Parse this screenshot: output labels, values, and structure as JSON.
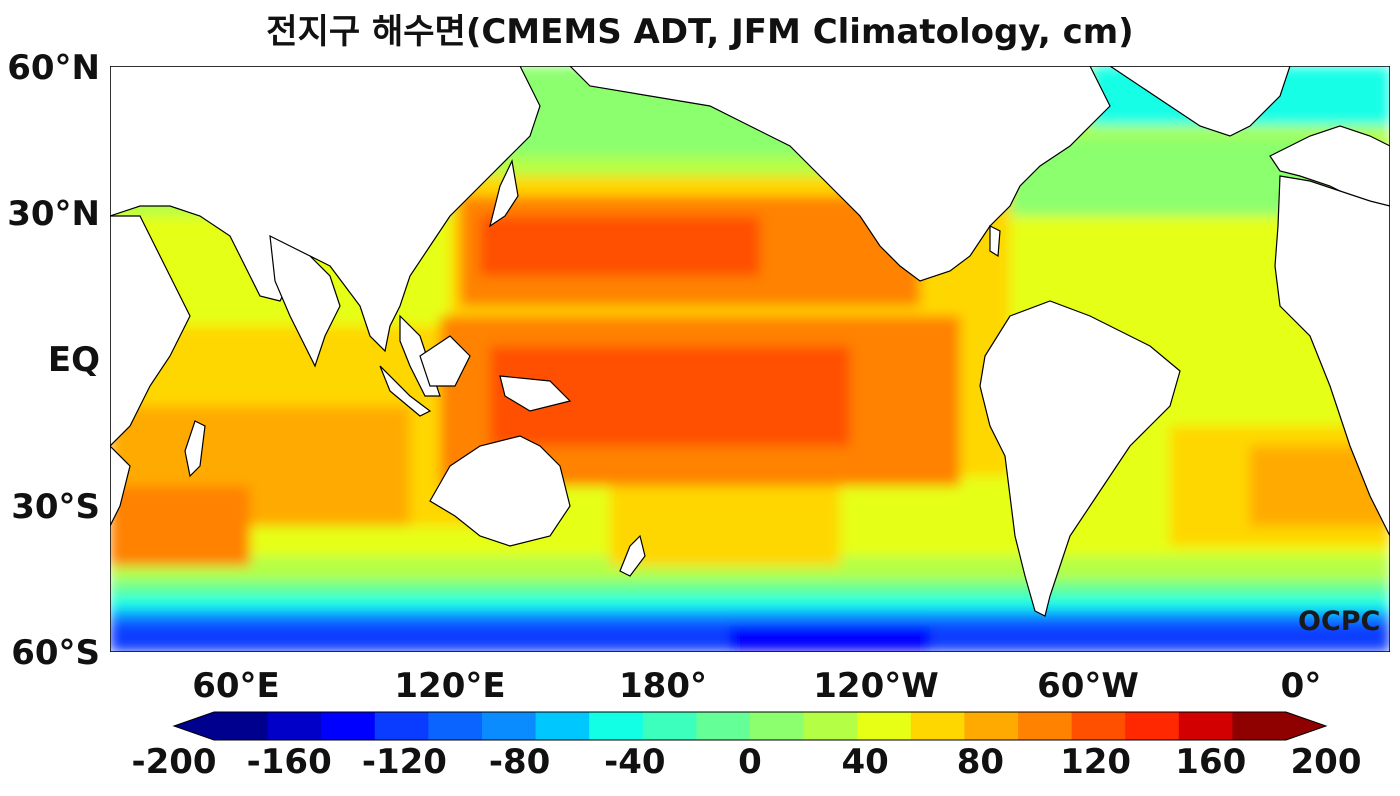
{
  "title": "전지구 해수면(CMEMS ADT, JFM Climatology, cm)",
  "watermark": "OCPC",
  "lat_labels": [
    "60°N",
    "30°N",
    "EQ",
    "30°S",
    "60°S"
  ],
  "lon_labels": [
    "60°E",
    "120°E",
    "180°",
    "120°W",
    "60°W",
    "0°"
  ],
  "colorbar": {
    "tick_labels": [
      "-200",
      "-160",
      "-120",
      "-80",
      "-40",
      "0",
      "40",
      "80",
      "120",
      "160",
      "200"
    ],
    "min": -200,
    "max": 200,
    "extend": "both",
    "colors": [
      "#00008f",
      "#0000c8",
      "#0000ff",
      "#0a3cff",
      "#0a64ff",
      "#0a8cff",
      "#00c8ff",
      "#12ffe6",
      "#3cffbe",
      "#64ff96",
      "#8cff6e",
      "#b4ff46",
      "#e6ff14",
      "#ffd700",
      "#ffaa00",
      "#ff8200",
      "#ff5000",
      "#ff2800",
      "#d20000",
      "#8f0000"
    ],
    "end_colors": [
      "#00008f",
      "#8f0000"
    ]
  },
  "map": {
    "projection": "PlateCarree (central 180°)",
    "lat_range": [
      -60,
      60
    ],
    "lon_range_deg_east": [
      32,
      392
    ],
    "land_color": "#ffffff",
    "coastline_color": "#000000"
  }
}
